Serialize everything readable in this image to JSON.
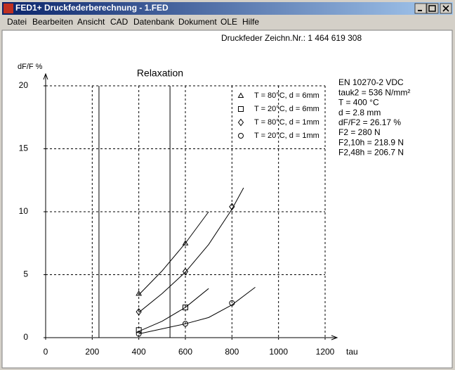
{
  "window": {
    "title": "FED1+   Druckfederberechnung   - 1.FED"
  },
  "menu": [
    "Datei",
    "Bearbeiten",
    "Ansicht",
    "CAD",
    "Datenbank",
    "Dokument",
    "OLE",
    "Hilfe"
  ],
  "header": "Druckfeder   Zeichn.Nr.: 1 464 619 308",
  "info": [
    "EN 10270-2 VDC",
    "tauk2 = 536 N/mm²",
    "T = 400 °C",
    "d = 2.8 mm",
    "dF/F2 = 26.17 %",
    "F2 = 280 N",
    "F2,10h = 218.9 N",
    "F2,48h = 206.7 N"
  ],
  "chart_data": {
    "type": "line",
    "title": "Relaxation",
    "x_label": "tau",
    "y_label": "dF/F %",
    "xlim": [
      0,
      1200
    ],
    "ylim": [
      0,
      20
    ],
    "xticks": [
      0,
      200,
      400,
      600,
      800,
      1000,
      1200
    ],
    "yticks": [
      0,
      5,
      10,
      15,
      20
    ],
    "grid": true,
    "vlines": [
      229,
      534
    ],
    "series": [
      {
        "name": "T = 80°C,  d = 6mm",
        "marker": "triangle",
        "color": "#000000",
        "x": [
          400,
          600
        ],
        "values": [
          3.5,
          7.5
        ],
        "curve_x": [
          400,
          500,
          600,
          700
        ],
        "curve_y": [
          3.4,
          5.3,
          7.5,
          10.0
        ]
      },
      {
        "name": "T = 20°C,  d = 6mm",
        "marker": "square",
        "color": "#000000",
        "x": [
          400,
          600
        ],
        "values": [
          0.6,
          2.4
        ],
        "curve_x": [
          400,
          500,
          600,
          700
        ],
        "curve_y": [
          0.5,
          1.3,
          2.4,
          3.9
        ]
      },
      {
        "name": "T = 80°C,  d = 1mm",
        "marker": "diamond",
        "color": "#000000",
        "x": [
          400,
          600,
          800
        ],
        "values": [
          2.05,
          5.25,
          10.4
        ],
        "curve_x": [
          400,
          500,
          600,
          700,
          800,
          850
        ],
        "curve_y": [
          2.0,
          3.5,
          5.2,
          7.4,
          10.2,
          11.9
        ]
      },
      {
        "name": "T = 20°C,  d = 1mm",
        "marker": "circle",
        "color": "#000000",
        "x": [
          400,
          600,
          800
        ],
        "values": [
          0.3,
          1.1,
          2.75
        ],
        "curve_x": [
          400,
          500,
          600,
          700,
          800,
          900
        ],
        "curve_y": [
          0.3,
          0.7,
          1.1,
          1.6,
          2.6,
          4.0
        ]
      }
    ]
  }
}
